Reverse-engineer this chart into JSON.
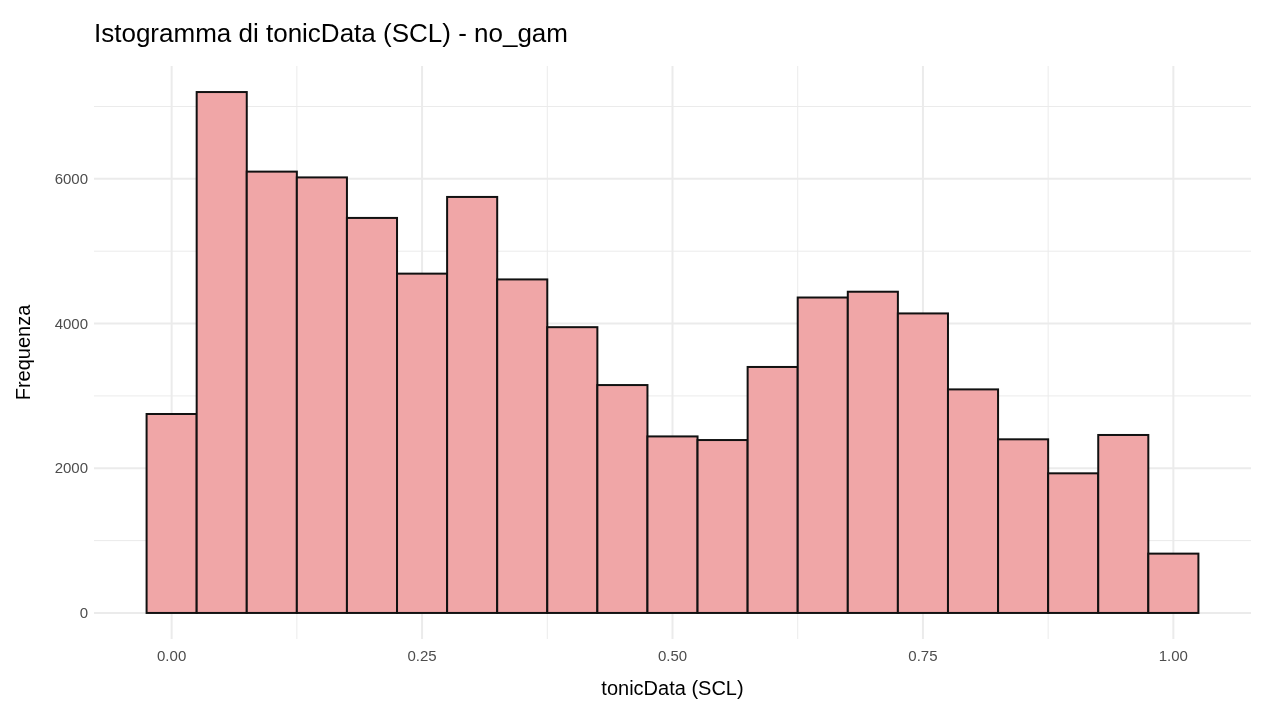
{
  "chart_data": {
    "type": "histogram",
    "title": "Istogramma di tonicData (SCL) - no_gam",
    "xlabel": "tonicData (SCL)",
    "ylabel": "Frequenza",
    "bins": [
      -0.025,
      0.025,
      0.075,
      0.125,
      0.175,
      0.225,
      0.275,
      0.325,
      0.375,
      0.425,
      0.475,
      0.525,
      0.575,
      0.625,
      0.675,
      0.725,
      0.775,
      0.825,
      0.875,
      0.925,
      0.975,
      1.025
    ],
    "values": [
      2750,
      7200,
      6100,
      6020,
      5460,
      4690,
      5750,
      4610,
      3950,
      3150,
      2440,
      2390,
      3400,
      4360,
      4440,
      4140,
      3090,
      2400,
      1930,
      2460,
      820
    ],
    "color": "#f0a6a7",
    "xlim": [
      -0.0775,
      1.0775
    ],
    "xticks": [
      {
        "value": 0,
        "label": "0.00"
      },
      {
        "value": 0.125,
        "label": null
      },
      {
        "value": 0.25,
        "label": "0.25"
      },
      {
        "value": 0.375,
        "label": null
      },
      {
        "value": 0.5,
        "label": "0.50"
      },
      {
        "value": 0.625,
        "label": null
      },
      {
        "value": 0.75,
        "label": "0.75"
      },
      {
        "value": 0.875,
        "label": null
      },
      {
        "value": 1,
        "label": "1.00"
      }
    ],
    "ylim": [
      -360,
      7560
    ],
    "yticks": [
      0,
      {
        "value": 1000,
        "label": null
      },
      2000,
      {
        "value": 3000,
        "label": null
      },
      4000,
      {
        "value": 5000,
        "label": null
      },
      6000,
      {
        "value": 7000,
        "label": null
      }
    ],
    "grid": true
  }
}
